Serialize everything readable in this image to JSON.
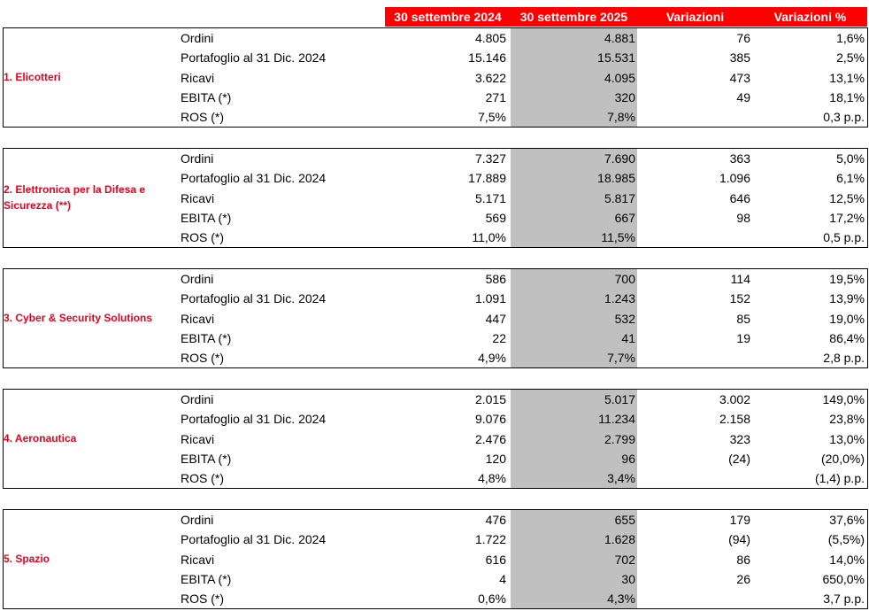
{
  "header": {
    "columns": [
      "30 settembre 2024",
      "30 settembre 2025",
      "Variazioni",
      "Variazioni %"
    ]
  },
  "sections": [
    {
      "label": "1. Elicotteri",
      "rows": [
        [
          "Ordini",
          "4.805",
          "4.881",
          "76",
          "1,6%"
        ],
        [
          "Portafoglio al 31 Dic. 2024",
          "15.146",
          "15.531",
          "385",
          "2,5%"
        ],
        [
          "Ricavi",
          "3.622",
          "4.095",
          "473",
          "13,1%"
        ],
        [
          "EBITA (*)",
          "271",
          "320",
          "49",
          "18,1%"
        ],
        [
          "ROS (*)",
          "7,5%",
          "7,8%",
          null,
          "0,3 p.p."
        ]
      ]
    },
    {
      "label": "2. Elettronica per la Difesa e Sicurezza (**)",
      "rows": [
        [
          "Ordini",
          "7.327",
          "7.690",
          "363",
          "5,0%"
        ],
        [
          "Portafoglio al 31 Dic. 2024",
          "17.889",
          "18.985",
          "1.096",
          "6,1%"
        ],
        [
          "Ricavi",
          "5.171",
          "5.817",
          "646",
          "12,5%"
        ],
        [
          "EBITA (*)",
          "569",
          "667",
          "98",
          "17,2%"
        ],
        [
          "ROS (*)",
          "11,0%",
          "11,5%",
          null,
          "0,5 p.p."
        ]
      ]
    },
    {
      "label": "3. Cyber & Security Solutions",
      "rows": [
        [
          "Ordini",
          "586",
          "700",
          "114",
          "19,5%"
        ],
        [
          "Portafoglio al 31 Dic. 2024",
          "1.091",
          "1.243",
          "152",
          "13,9%"
        ],
        [
          "Ricavi",
          "447",
          "532",
          "85",
          "19,0%"
        ],
        [
          "EBITA (*)",
          "22",
          "41",
          "19",
          "86,4%"
        ],
        [
          "ROS (*)",
          "4,9%",
          "7,7%",
          null,
          "2,8 p.p."
        ]
      ]
    },
    {
      "label": "4. Aeronautica",
      "rows": [
        [
          "Ordini",
          "2.015",
          "5.017",
          "3.002",
          "149,0%"
        ],
        [
          "Portafoglio al 31 Dic. 2024",
          "9.076",
          "11.234",
          "2.158",
          "23,8%"
        ],
        [
          "Ricavi",
          "2.476",
          "2.799",
          "323",
          "13,0%"
        ],
        [
          "EBITA (*)",
          "120",
          "96",
          "(24)",
          "(20,0%)"
        ],
        [
          "ROS (*)",
          "4,8%",
          "3,4%",
          null,
          "(1,4) p.p."
        ]
      ]
    },
    {
      "label": "5. Spazio",
      "rows": [
        [
          "Ordini",
          "476",
          "655",
          "179",
          "37,6%"
        ],
        [
          "Portafoglio al 31 Dic. 2024",
          "1.722",
          "1.628",
          "(94)",
          "(5,5%)"
        ],
        [
          "Ricavi",
          "616",
          "702",
          "86",
          "14,0%"
        ],
        [
          "EBITA (*)",
          "4",
          "30",
          "26",
          "650,0%"
        ],
        [
          "ROS (*)",
          "0,6%",
          "4,3%",
          null,
          "3,7 p.p."
        ]
      ]
    }
  ]
}
